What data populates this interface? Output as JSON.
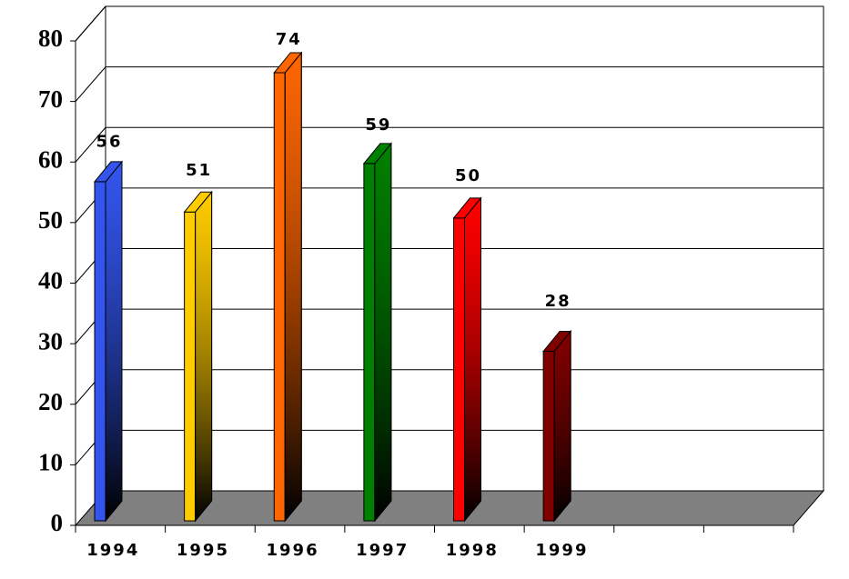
{
  "chart_data": {
    "type": "bar3d",
    "categories": [
      "1994",
      "1995",
      "1996",
      "1997",
      "1998",
      "1999",
      null,
      null
    ],
    "values": [
      56,
      51,
      74,
      59,
      50,
      28,
      null,
      null
    ],
    "colors": [
      "#3355ee",
      "#ffcc00",
      "#ff6600",
      "#008000",
      "#ff0000",
      "#800000",
      null,
      null
    ],
    "ylim": [
      0,
      80
    ],
    "yticks": [
      0,
      10,
      20,
      30,
      40,
      50,
      60,
      70,
      80
    ],
    "grid": true
  }
}
